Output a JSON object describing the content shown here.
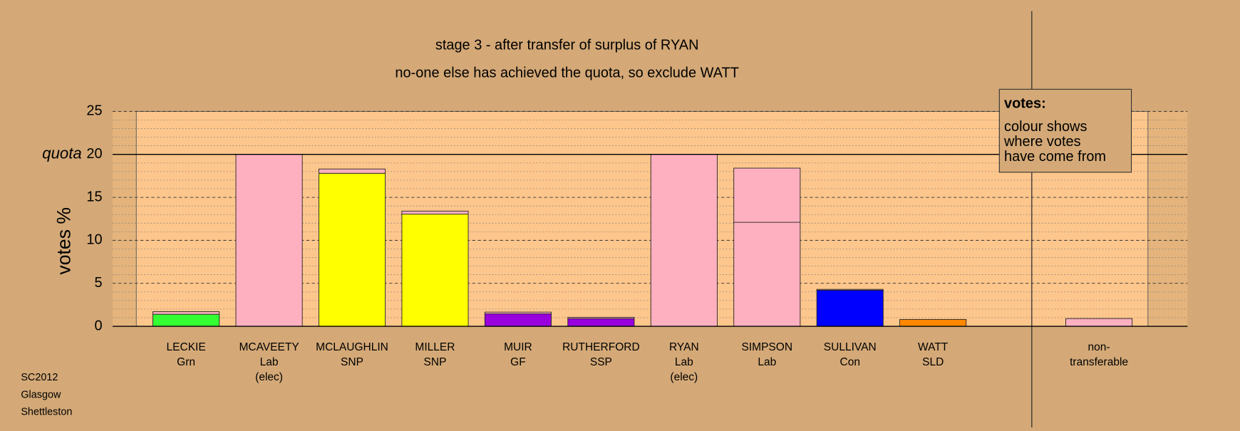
{
  "chart_data": {
    "type": "stacked-bar",
    "title": "stage 3 - after transfer of surplus of RYAN",
    "subtitle": "no-one else has achieved the quota, so exclude WATT",
    "y_label": "votes %",
    "ylim": [
      0,
      25
    ],
    "yticks": [
      0,
      5,
      10,
      15,
      20,
      25
    ],
    "minor_yticks": [
      1,
      2,
      3,
      4,
      6,
      7,
      8,
      9,
      11,
      12,
      13,
      14,
      16,
      17,
      18,
      19,
      21,
      22,
      23,
      24
    ],
    "quota": 20,
    "quota_label": "quota",
    "legend": {
      "title": "votes:",
      "lines": [
        "colour shows",
        "where votes",
        "have come from"
      ]
    },
    "footer": [
      "SC2012",
      "Glasgow",
      "Shettleston"
    ],
    "bars": [
      {
        "label": [
          "LECKIE",
          "Grn"
        ],
        "segments": [
          {
            "color": "#33ff33",
            "value": 1.4
          },
          {
            "color": "#ffb0c0",
            "value": 0.3
          }
        ]
      },
      {
        "label": [
          "MCAVEETY",
          "Lab",
          "(elec)"
        ],
        "segments": [
          {
            "color": "#ffb0c0",
            "value": 20
          }
        ]
      },
      {
        "label": [
          "MCLAUGHLIN",
          "SNP"
        ],
        "segments": [
          {
            "color": "#ffff00",
            "value": 17.8
          },
          {
            "color": "#ffb0c0",
            "value": 0.5
          }
        ]
      },
      {
        "label": [
          "MILLER",
          "SNP"
        ],
        "segments": [
          {
            "color": "#ffff00",
            "value": 13.05
          },
          {
            "color": "#ffb0c0",
            "value": 0.35
          }
        ]
      },
      {
        "label": [
          "MUIR",
          "GF"
        ],
        "segments": [
          {
            "color": "#9900dd",
            "value": 1.45
          },
          {
            "color": "#ffb0c0",
            "value": 0.2
          }
        ]
      },
      {
        "label": [
          "RUTHERFORD",
          "SSP"
        ],
        "segments": [
          {
            "color": "#9900dd",
            "value": 0.9
          },
          {
            "color": "#ffb0c0",
            "value": 0.15
          }
        ]
      },
      {
        "label": [
          "RYAN",
          "Lab",
          "(elec)"
        ],
        "segments": [
          {
            "color": "#ffb0c0",
            "value": 20
          }
        ]
      },
      {
        "label": [
          "SIMPSON",
          "Lab"
        ],
        "segments": [
          {
            "color": "#ffb0c0",
            "value": 12.1
          },
          {
            "color": "#ffb0c0",
            "value": 6.3
          }
        ]
      },
      {
        "label": [
          "SULLIVAN",
          "Con"
        ],
        "segments": [
          {
            "color": "#0000ff",
            "value": 4.2
          },
          {
            "color": "#ffb0c0",
            "value": 0.1
          }
        ]
      },
      {
        "label": [
          "WATT",
          "SLD"
        ],
        "segments": [
          {
            "color": "#ff8800",
            "value": 0.8
          }
        ]
      },
      {
        "label": [
          "non-",
          "transferable"
        ],
        "segments": [
          {
            "color": "#ffb0c0",
            "value": 0.9
          }
        ],
        "separate": true
      }
    ]
  }
}
